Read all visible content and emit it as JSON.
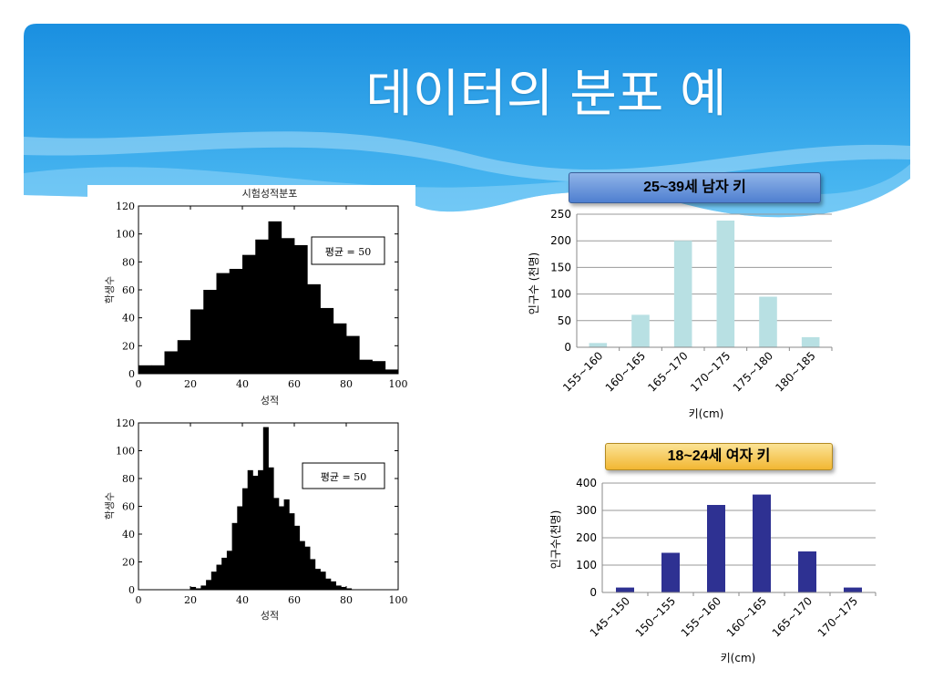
{
  "slide": {
    "title": "데이터의 분포 예"
  },
  "colors": {
    "header_top": "#1a8fe0",
    "header_bottom": "#45b6f2",
    "histogram_fill": "#000000",
    "male_bar": "#b8e0e3",
    "female_bar": "#2e3192",
    "grid": "#999999"
  },
  "chart_data": [
    {
      "id": "exam_uniform",
      "type": "bar",
      "title": "시험성적분포",
      "xlabel": "성적",
      "ylabel": "학생수",
      "xlim": [
        0,
        100
      ],
      "ylim": [
        0,
        120
      ],
      "xticks": [
        0,
        20,
        40,
        60,
        80,
        100
      ],
      "yticks": [
        0,
        20,
        40,
        60,
        80,
        100,
        120
      ],
      "bin_width": 5,
      "bin_starts": [
        0,
        5,
        10,
        15,
        20,
        25,
        30,
        35,
        40,
        45,
        50,
        55,
        60,
        65,
        70,
        75,
        80,
        85,
        90,
        95
      ],
      "values": [
        6,
        6,
        16,
        24,
        46,
        60,
        72,
        75,
        85,
        96,
        109,
        97,
        92,
        64,
        47,
        36,
        27,
        10,
        9,
        3
      ],
      "annotation": "평균 = 50"
    },
    {
      "id": "exam_normal",
      "type": "bar",
      "title": "",
      "xlabel": "성적",
      "ylabel": "학생수",
      "xlim": [
        0,
        100
      ],
      "ylim": [
        0,
        120
      ],
      "xticks": [
        0,
        20,
        40,
        60,
        80,
        100
      ],
      "yticks": [
        0,
        20,
        40,
        60,
        80,
        100,
        120
      ],
      "bin_width": 2,
      "bin_starts": [
        20,
        22,
        24,
        26,
        28,
        30,
        32,
        34,
        36,
        38,
        40,
        42,
        44,
        46,
        48,
        50,
        52,
        54,
        56,
        58,
        60,
        62,
        64,
        66,
        68,
        70,
        72,
        74,
        76,
        78,
        80
      ],
      "values": [
        2,
        1,
        3,
        7,
        13,
        18,
        23,
        28,
        48,
        60,
        73,
        86,
        82,
        86,
        117,
        88,
        66,
        60,
        65,
        55,
        46,
        35,
        31,
        22,
        15,
        13,
        8,
        6,
        3,
        2,
        1
      ],
      "annotation": "평균 = 50"
    },
    {
      "id": "male_height",
      "type": "bar",
      "title": "25~39세 남자 키",
      "xlabel": "키(cm)",
      "ylabel": "인구수 (천명)",
      "categories": [
        "155~160",
        "160~165",
        "165~170",
        "170~175",
        "175~180",
        "180~185"
      ],
      "values": [
        8,
        61,
        200,
        238,
        95,
        19
      ],
      "ylim": [
        0,
        250
      ],
      "yticks": [
        0,
        50,
        100,
        150,
        200,
        250
      ],
      "grid": true
    },
    {
      "id": "female_height",
      "type": "bar",
      "title": "18~24세 여자 키",
      "xlabel": "키(cm)",
      "ylabel": "인구수(천명)",
      "categories": [
        "145~150",
        "150~155",
        "155~160",
        "160~165",
        "165~170",
        "170~175"
      ],
      "values": [
        18,
        145,
        320,
        358,
        150,
        18
      ],
      "ylim": [
        0,
        400
      ],
      "yticks": [
        0,
        100,
        200,
        300,
        400
      ],
      "grid": true
    }
  ]
}
